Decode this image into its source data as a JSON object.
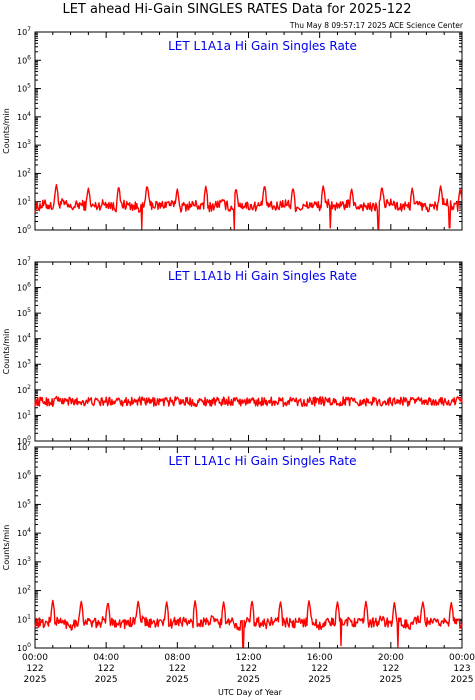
{
  "header": {
    "title": "LET ahead Hi-Gain SINGLES RATES Data for 2025-122",
    "timestamp": "Thu May  8 09:57:17 2025 ACE Science Center"
  },
  "axes": {
    "ylabel": "Counts/min",
    "xlabel": "UTC Day of Year",
    "y_exponents": [
      "0",
      "1",
      "2",
      "3",
      "4",
      "5",
      "6",
      "7"
    ],
    "y_base": "10"
  },
  "x_ticks": [
    {
      "time": "00:00",
      "doy": "122",
      "year": "2025"
    },
    {
      "time": "04:00",
      "doy": "122",
      "year": "2025"
    },
    {
      "time": "08:00",
      "doy": "122",
      "year": "2025"
    },
    {
      "time": "12:00",
      "doy": "122",
      "year": "2025"
    },
    {
      "time": "16:00",
      "doy": "122",
      "year": "2025"
    },
    {
      "time": "20:00",
      "doy": "122",
      "year": "2025"
    },
    {
      "time": "00:00",
      "doy": "123",
      "year": "2025"
    }
  ],
  "colors": {
    "series": "#ff0000",
    "panel_title": "#0000ee",
    "axes": "#000000",
    "background": "#ffffff"
  },
  "chart_data": [
    {
      "type": "line",
      "title": "LET L1A1a Hi Gain Singles Rate",
      "ylabel": "Counts/min",
      "yscale": "log",
      "ylim": [
        1,
        10000000
      ],
      "xlim_hours": [
        0,
        24
      ],
      "series": [
        {
          "baseline": 7,
          "x_hours": [
            0.0,
            0.5,
            1.0,
            1.5,
            2.0,
            2.5,
            3.0,
            3.5,
            4.0,
            4.5,
            5.0,
            5.5,
            6.0,
            6.5,
            7.0,
            7.5,
            8.0,
            8.5,
            9.0,
            9.5,
            10.0,
            10.5,
            11.0,
            11.5,
            12.0,
            12.5,
            13.0,
            13.5,
            14.0,
            14.5,
            15.0,
            15.5,
            16.0,
            16.5,
            17.0,
            17.5,
            18.0,
            18.5,
            19.0,
            19.5,
            20.0,
            20.5,
            21.0,
            21.5,
            22.0,
            22.5,
            23.0,
            23.5,
            24.0
          ],
          "values": [
            6,
            8,
            7,
            9,
            6,
            8,
            7,
            7,
            9,
            6,
            8,
            7,
            6,
            8,
            7,
            9,
            6,
            7,
            8,
            6,
            7,
            9,
            6,
            8,
            7,
            7,
            8,
            6,
            9,
            7,
            6,
            8,
            7,
            9,
            6,
            8,
            7,
            7,
            6,
            8,
            9,
            6,
            7,
            8,
            6,
            7,
            9,
            7,
            6
          ]
        }
      ],
      "peaks": [
        {
          "hour": 1.2,
          "value": 40
        },
        {
          "hour": 3.0,
          "value": 30
        },
        {
          "hour": 4.7,
          "value": 35
        },
        {
          "hour": 6.3,
          "value": 38
        },
        {
          "hour": 8.0,
          "value": 28
        },
        {
          "hour": 9.6,
          "value": 35
        },
        {
          "hour": 11.3,
          "value": 30
        },
        {
          "hour": 12.9,
          "value": 38
        },
        {
          "hour": 14.5,
          "value": 32
        },
        {
          "hour": 16.2,
          "value": 36
        },
        {
          "hour": 17.8,
          "value": 28
        },
        {
          "hour": 19.5,
          "value": 34
        },
        {
          "hour": 21.2,
          "value": 30
        },
        {
          "hour": 22.8,
          "value": 36
        },
        {
          "hour": 23.9,
          "value": 30
        }
      ],
      "dips": [
        {
          "hour": 6.0,
          "value": 1.2
        },
        {
          "hour": 11.2,
          "value": 1.1
        },
        {
          "hour": 16.6,
          "value": 1.2
        },
        {
          "hour": 19.3,
          "value": 1.1
        },
        {
          "hour": 23.3,
          "value": 1.2
        }
      ]
    },
    {
      "type": "line",
      "title": "LET L1A1b Hi Gain Singles Rate",
      "ylabel": "Counts/min",
      "yscale": "log",
      "ylim": [
        1,
        10000000
      ],
      "xlim_hours": [
        0,
        24
      ],
      "series": [
        {
          "baseline": 35,
          "x_hours": [
            0.0,
            0.5,
            1.0,
            1.5,
            2.0,
            2.5,
            3.0,
            3.5,
            4.0,
            4.5,
            5.0,
            5.5,
            6.0,
            6.5,
            7.0,
            7.5,
            8.0,
            8.5,
            9.0,
            9.5,
            10.0,
            10.5,
            11.0,
            11.5,
            12.0,
            12.5,
            13.0,
            13.5,
            14.0,
            14.5,
            15.0,
            15.5,
            16.0,
            16.5,
            17.0,
            17.5,
            18.0,
            18.5,
            19.0,
            19.5,
            20.0,
            20.5,
            21.0,
            21.5,
            22.0,
            22.5,
            23.0,
            23.5,
            24.0
          ],
          "values": [
            34,
            36,
            33,
            37,
            35,
            34,
            36,
            33,
            35,
            37,
            34,
            36,
            35,
            33,
            36,
            34,
            37,
            35,
            33,
            36,
            34,
            35,
            37,
            33,
            36,
            34,
            35,
            36,
            33,
            37,
            34,
            35,
            36,
            34,
            33,
            37,
            35,
            34,
            36,
            33,
            35,
            37,
            34,
            36,
            33,
            35,
            34,
            36,
            40
          ]
        }
      ],
      "peaks": [
        {
          "hour": 1.2,
          "value": 55
        },
        {
          "hour": 4.7,
          "value": 50
        },
        {
          "hour": 8.0,
          "value": 52
        },
        {
          "hour": 11.3,
          "value": 50
        },
        {
          "hour": 14.5,
          "value": 48
        },
        {
          "hour": 17.8,
          "value": 50
        },
        {
          "hour": 21.2,
          "value": 48
        },
        {
          "hour": 23.8,
          "value": 50
        }
      ],
      "dips": []
    },
    {
      "type": "line",
      "title": "LET L1A1c Hi Gain Singles Rate",
      "ylabel": "Counts/min",
      "yscale": "log",
      "ylim": [
        1,
        10000000
      ],
      "xlim_hours": [
        0,
        24
      ],
      "series": [
        {
          "baseline": 8,
          "x_hours": [
            0.0,
            0.5,
            1.0,
            1.5,
            2.0,
            2.5,
            3.0,
            3.5,
            4.0,
            4.5,
            5.0,
            5.5,
            6.0,
            6.5,
            7.0,
            7.5,
            8.0,
            8.5,
            9.0,
            9.5,
            10.0,
            10.5,
            11.0,
            11.5,
            12.0,
            12.5,
            13.0,
            13.5,
            14.0,
            14.5,
            15.0,
            15.5,
            16.0,
            16.5,
            17.0,
            17.5,
            18.0,
            18.5,
            19.0,
            19.5,
            20.0,
            20.5,
            21.0,
            21.5,
            22.0,
            22.5,
            23.0,
            23.5,
            24.0
          ],
          "values": [
            8,
            7,
            9,
            8,
            6,
            9,
            8,
            7,
            9,
            8,
            7,
            8,
            9,
            7,
            8,
            6,
            9,
            8,
            7,
            8,
            9,
            7,
            8,
            6,
            9,
            8,
            7,
            9,
            8,
            7,
            8,
            9,
            6,
            8,
            7,
            9,
            8,
            7,
            8,
            9,
            7,
            8,
            6,
            9,
            8,
            7,
            9,
            8,
            7
          ]
        }
      ],
      "peaks": [
        {
          "hour": 1.0,
          "value": 45
        },
        {
          "hour": 2.6,
          "value": 42
        },
        {
          "hour": 4.1,
          "value": 40
        },
        {
          "hour": 5.8,
          "value": 42
        },
        {
          "hour": 7.4,
          "value": 40
        },
        {
          "hour": 9.0,
          "value": 44
        },
        {
          "hour": 10.6,
          "value": 40
        },
        {
          "hour": 12.2,
          "value": 42
        },
        {
          "hour": 13.8,
          "value": 40
        },
        {
          "hour": 15.4,
          "value": 44
        },
        {
          "hour": 17.0,
          "value": 40
        },
        {
          "hour": 18.6,
          "value": 42
        },
        {
          "hour": 20.2,
          "value": 38
        },
        {
          "hour": 21.8,
          "value": 40
        },
        {
          "hour": 23.4,
          "value": 38
        }
      ],
      "dips": [
        {
          "hour": 11.7,
          "value": 1.1
        },
        {
          "hour": 17.2,
          "value": 1.2
        },
        {
          "hour": 20.4,
          "value": 1.1
        }
      ]
    }
  ]
}
